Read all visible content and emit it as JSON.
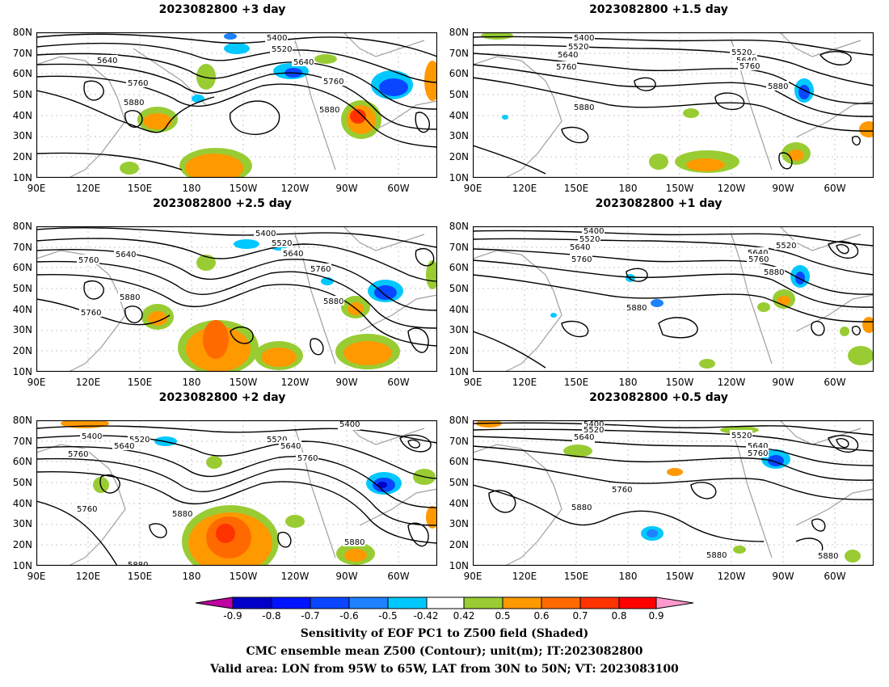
{
  "panels": [
    {
      "title": "2023082800  +3 day",
      "contour_labels": [
        "5400",
        "5520",
        "5640",
        "5640",
        "5760",
        "5760",
        "5880",
        "5880"
      ]
    },
    {
      "title": "2023082800  +1.5 day",
      "contour_labels": [
        "5400",
        "5520",
        "5640",
        "5760",
        "5520",
        "5640",
        "5760",
        "5880",
        "5880"
      ]
    },
    {
      "title": "2023082800  +2.5 day",
      "contour_labels": [
        "5400",
        "5520",
        "5640",
        "5640",
        "5760",
        "5760",
        "5760",
        "5880",
        "5880"
      ]
    },
    {
      "title": "2023082800  +1 day",
      "contour_labels": [
        "5400",
        "5520",
        "5640",
        "5760",
        "5520",
        "5640",
        "5760",
        "5880",
        "5880"
      ]
    },
    {
      "title": "2023082800  +2 day",
      "contour_labels": [
        "5400",
        "5400",
        "5520",
        "5640",
        "5520",
        "5640",
        "5760",
        "5760",
        "5760",
        "5880",
        "5880",
        "5880"
      ]
    },
    {
      "title": "2023082800  +0.5 day",
      "contour_labels": [
        "5400",
        "5520",
        "5640",
        "5520",
        "5640",
        "5760",
        "5760",
        "5880",
        "5880",
        "5880"
      ]
    }
  ],
  "lat_labels": [
    "80N",
    "70N",
    "60N",
    "50N",
    "40N",
    "30N",
    "20N",
    "10N"
  ],
  "lon_labels": [
    "90E",
    "120E",
    "150E",
    "180",
    "150W",
    "120W",
    "90W",
    "60W"
  ],
  "colorbar": {
    "labels": [
      "-0.9",
      "-0.8",
      "-0.7",
      "-0.6",
      "-0.5",
      "-0.42",
      "0.42",
      "0.5",
      "0.6",
      "0.7",
      "0.8",
      "0.9"
    ],
    "colors": [
      "#c000a0",
      "#0000c8",
      "#0014ff",
      "#0a46ff",
      "#1e82ff",
      "#00c8ff",
      "#ffffff",
      "#99cc33",
      "#ff9900",
      "#ff6a00",
      "#ff3300",
      "#ff0000",
      "#ff99cc"
    ]
  },
  "caption": {
    "line1": "Sensitivity of EOF PC1 to Z500 field (Shaded)",
    "line2": "CMC ensemble mean Z500 (Contour); unit(m); IT:2023082800",
    "line3": "Valid area: LON from 95W to 65W, LAT from 30N to 50N; VT: 2023083100"
  }
}
